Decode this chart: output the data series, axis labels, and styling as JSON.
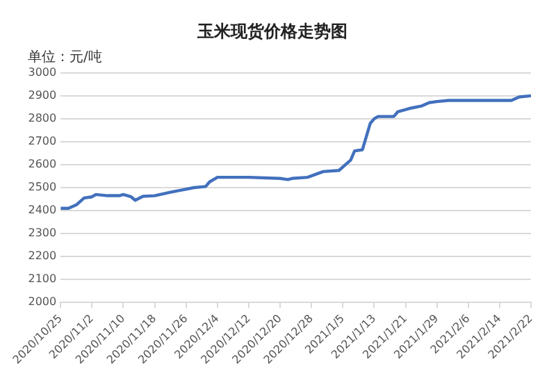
{
  "chart_data": {
    "type": "line",
    "title": "玉米现货价格走势图",
    "annotations": [
      "单位：元/吨"
    ],
    "x": [
      "2020-10-25",
      "2020-10-27",
      "2020-10-29",
      "2020-10-31",
      "2020-11-02",
      "2020-11-03",
      "2020-11-06",
      "2020-11-09",
      "2020-11-10",
      "2020-11-12",
      "2020-11-13",
      "2020-11-15",
      "2020-11-18",
      "2020-11-22",
      "2020-11-25",
      "2020-11-28",
      "2020-12-01",
      "2020-12-02",
      "2020-12-04",
      "2020-12-12",
      "2020-12-20",
      "2020-12-22",
      "2020-12-23",
      "2020-12-27",
      "2020-12-31",
      "2021-01-04",
      "2021-01-07",
      "2021-01-08",
      "2021-01-10",
      "2021-01-12",
      "2021-01-13",
      "2021-01-14",
      "2021-01-18",
      "2021-01-19",
      "2021-01-22",
      "2021-01-25",
      "2021-01-27",
      "2021-01-29",
      "2021-02-01",
      "2021-02-10",
      "2021-02-17",
      "2021-02-19",
      "2021-02-22"
    ],
    "series": [
      {
        "color": "#4270bd",
        "values": [
          2410,
          2410,
          2425,
          2455,
          2460,
          2470,
          2465,
          2465,
          2470,
          2460,
          2445,
          2462,
          2465,
          2480,
          2490,
          2500,
          2505,
          2525,
          2545,
          2545,
          2540,
          2535,
          2540,
          2545,
          2570,
          2575,
          2620,
          2660,
          2665,
          2780,
          2800,
          2810,
          2810,
          2830,
          2845,
          2855,
          2870,
          2875,
          2880,
          2880,
          2880,
          2895,
          2900
        ]
      }
    ],
    "xlim": [
      "2020-10-25",
      "2021-02-22"
    ],
    "xticks": [
      {
        "value": "2020-10-25",
        "label": "2020/10/25"
      },
      {
        "value": "2020-11-02",
        "label": "2020/11/2"
      },
      {
        "value": "2020-11-10",
        "label": "2020/11/10"
      },
      {
        "value": "2020-11-18",
        "label": "2020/11/18"
      },
      {
        "value": "2020-11-26",
        "label": "2020/11/26"
      },
      {
        "value": "2020-12-04",
        "label": "2020/12/4"
      },
      {
        "value": "2020-12-12",
        "label": "2020/12/12"
      },
      {
        "value": "2020-12-20",
        "label": "2020/12/20"
      },
      {
        "value": "2020-12-28",
        "label": "2020/12/28"
      },
      {
        "value": "2021-01-05",
        "label": "2021/1/5"
      },
      {
        "value": "2021-01-13",
        "label": "2021/1/13"
      },
      {
        "value": "2021-01-21",
        "label": "2021/1/21"
      },
      {
        "value": "2021-01-29",
        "label": "2021/1/29"
      },
      {
        "value": "2021-02-06",
        "label": "2021/2/6"
      },
      {
        "value": "2021-02-14",
        "label": "2021/2/14"
      },
      {
        "value": "2021-02-22",
        "label": "2021/2/22"
      }
    ],
    "ylim": [
      2000,
      3000
    ],
    "yticks": [
      2000,
      2100,
      2200,
      2300,
      2400,
      2500,
      2600,
      2700,
      2800,
      2900,
      3000
    ],
    "grid": "y",
    "legend": false,
    "marker": "none",
    "line_style": "solid"
  }
}
